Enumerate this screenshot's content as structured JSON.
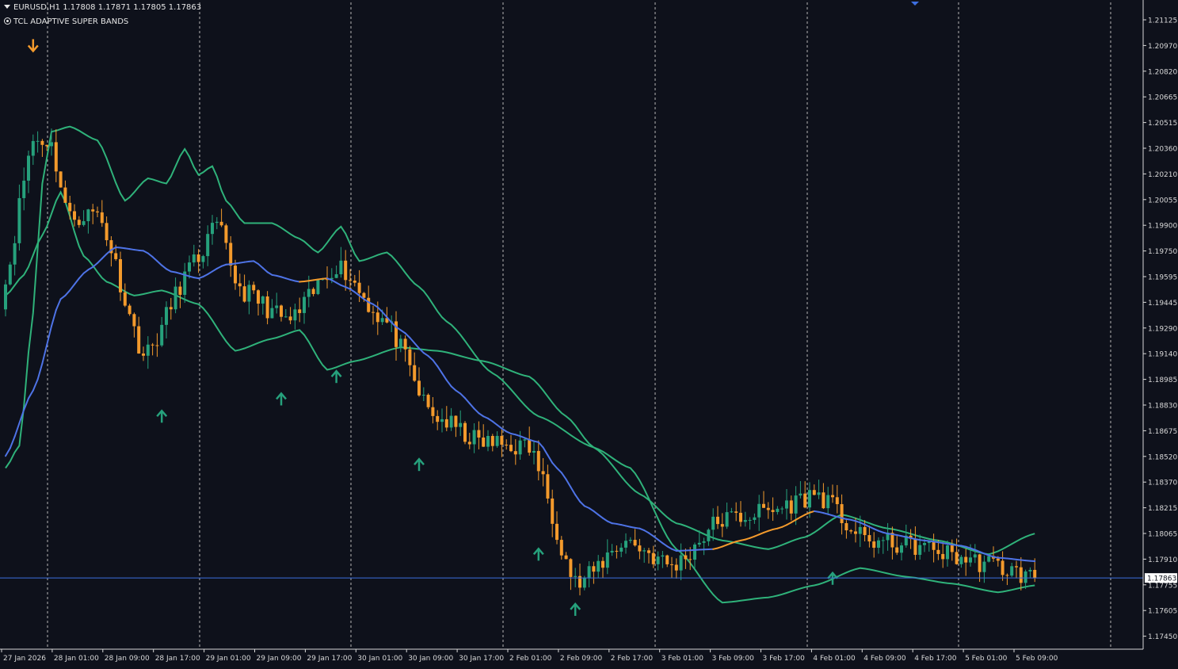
{
  "header": {
    "symbol_line": "EURUSD,H1  1.17808 1.17871 1.17805 1.17863",
    "indicator_name": "TCL ADAPTIVE SUPER BANDS",
    "menu_icon": "triangle-down-icon",
    "indicator_icon": "indicator-circle-icon"
  },
  "colors": {
    "background": "#0e111b",
    "bull": "#26a17c",
    "bear": "#f39a2c",
    "band": "#2fb27a",
    "ma_down": "#4e73e6",
    "ma_up": "#f39a2c",
    "price_line": "#3d6fe0",
    "grid": "#c8c8c8",
    "axis": "#d8d8d8",
    "axis_text": "#d8d8d8"
  },
  "chart_data": {
    "type": "candlestick",
    "symbol": "EURUSD",
    "timeframe": "H1",
    "title": "EURUSD,H1",
    "indicator": "TCL ADAPTIVE SUPER BANDS",
    "last_price": "1.17863",
    "ylim": [
      1.1745,
      1.212
    ],
    "y_ticks": [
      "1.21125",
      "1.20970",
      "1.20820",
      "1.20665",
      "1.20515",
      "1.20360",
      "1.20210",
      "1.20055",
      "1.19900",
      "1.19750",
      "1.19595",
      "1.19445",
      "1.19290",
      "1.19140",
      "1.18985",
      "1.18830",
      "1.18675",
      "1.18520",
      "1.18370",
      "1.18215",
      "1.18065",
      "1.17910",
      "1.17755",
      "1.17605",
      "1.17450"
    ],
    "x_ticks": [
      "27 Jan 2026",
      "28 Jan 01:00",
      "28 Jan 09:00",
      "28 Jan 17:00",
      "29 Jan 01:00",
      "29 Jan 09:00",
      "29 Jan 17:00",
      "30 Jan 01:00",
      "30 Jan 09:00",
      "30 Jan 17:00",
      "2 Feb 01:00",
      "2 Feb 09:00",
      "2 Feb 17:00",
      "3 Feb 01:00",
      "3 Feb 09:00",
      "3 Feb 17:00",
      "4 Feb 01:00",
      "4 Feb 09:00",
      "4 Feb 17:00",
      "5 Feb 01:00",
      "5 Feb 09:00"
    ],
    "day_separators": [
      "28 Jan",
      "29 Jan",
      "30 Jan",
      "31 Jan",
      "1 Feb",
      "2 Feb",
      "3 Feb",
      "4 Feb",
      "5 Feb",
      "6 Feb"
    ],
    "candle_anchors": [
      {
        "t": "27 Jan 2026",
        "close": 1.1948
      },
      {
        "t": "27 Jan 23:00",
        "close": 1.204
      },
      {
        "t": "28 Jan 01:00",
        "close": 1.204
      },
      {
        "t": "28 Jan 04:00",
        "close": 1.1995
      },
      {
        "t": "28 Jan 09:00",
        "close": 1.1998
      },
      {
        "t": "28 Jan 17:00",
        "close": 1.1915
      },
      {
        "t": "29 Jan 01:00",
        "close": 1.1968
      },
      {
        "t": "29 Jan 05:00",
        "close": 1.199
      },
      {
        "t": "29 Jan 09:00",
        "close": 1.1953
      },
      {
        "t": "29 Jan 17:00",
        "close": 1.1935
      },
      {
        "t": "30 Jan 01:00",
        "close": 1.1968
      },
      {
        "t": "30 Jan 09:00",
        "close": 1.1935
      },
      {
        "t": "30 Jan 17:00",
        "close": 1.188
      },
      {
        "t": "2 Feb 01:00",
        "close": 1.1865
      },
      {
        "t": "2 Feb 09:00",
        "close": 1.1862
      },
      {
        "t": "2 Feb 17:00",
        "close": 1.1782
      },
      {
        "t": "3 Feb 01:00",
        "close": 1.1808
      },
      {
        "t": "3 Feb 09:00",
        "close": 1.1793
      },
      {
        "t": "3 Feb 17:00",
        "close": 1.182
      },
      {
        "t": "4 Feb 01:00",
        "close": 1.1825
      },
      {
        "t": "4 Feb 09:00",
        "close": 1.1835
      },
      {
        "t": "4 Feb 17:00",
        "close": 1.1808
      },
      {
        "t": "5 Feb 01:00",
        "close": 1.1805
      },
      {
        "t": "5 Feb 06:00",
        "close": 1.1795
      },
      {
        "t": "5 Feb 10:00",
        "close": 1.17863
      }
    ],
    "series": [
      {
        "name": "",
        "role": "upper band",
        "points": [
          [
            0,
            1.185
          ],
          [
            3,
            1.1863
          ],
          [
            6,
            1.194
          ],
          [
            8,
            1.2015
          ],
          [
            10,
            1.2045
          ],
          [
            14,
            1.2048
          ],
          [
            20,
            1.204
          ],
          [
            26,
            1.2005
          ],
          [
            31,
            1.2018
          ],
          [
            35,
            1.2015
          ],
          [
            39,
            1.2035
          ],
          [
            42,
            1.202
          ],
          [
            45,
            1.2025
          ],
          [
            48,
            1.2005
          ],
          [
            52,
            1.1992
          ],
          [
            58,
            1.1992
          ],
          [
            64,
            1.1983
          ],
          [
            68,
            1.1975
          ],
          [
            73,
            1.199
          ],
          [
            77,
            1.197
          ],
          [
            83,
            1.1975
          ],
          [
            90,
            1.1955
          ],
          [
            96,
            1.1935
          ],
          [
            106,
            1.1905
          ],
          [
            116,
            1.188
          ],
          [
            128,
            1.1862
          ],
          [
            138,
            1.1835
          ],
          [
            146,
            1.1818
          ],
          [
            156,
            1.1808
          ],
          [
            166,
            1.1803
          ],
          [
            174,
            1.181
          ],
          [
            182,
            1.1823
          ],
          [
            192,
            1.1815
          ],
          [
            203,
            1.1808
          ],
          [
            214,
            1.18
          ],
          [
            224,
            1.1812
          ]
        ]
      },
      {
        "name": "",
        "role": "lower band",
        "points": [
          [
            0,
            1.195
          ],
          [
            4,
            1.1962
          ],
          [
            8,
            1.1985
          ],
          [
            12,
            1.201
          ],
          [
            17,
            1.1973
          ],
          [
            22,
            1.1958
          ],
          [
            28,
            1.195
          ],
          [
            34,
            1.1953
          ],
          [
            42,
            1.1945
          ],
          [
            50,
            1.1918
          ],
          [
            58,
            1.1925
          ],
          [
            64,
            1.193
          ],
          [
            70,
            1.1907
          ],
          [
            76,
            1.1912
          ],
          [
            86,
            1.192
          ],
          [
            94,
            1.1918
          ],
          [
            104,
            1.1912
          ],
          [
            114,
            1.1903
          ],
          [
            122,
            1.188
          ],
          [
            128,
            1.1862
          ],
          [
            136,
            1.185
          ],
          [
            146,
            1.1803
          ],
          [
            156,
            1.1772
          ],
          [
            166,
            1.1775
          ],
          [
            176,
            1.1782
          ],
          [
            186,
            1.1792
          ],
          [
            196,
            1.1787
          ],
          [
            206,
            1.1783
          ],
          [
            216,
            1.1778
          ],
          [
            224,
            1.1782
          ]
        ]
      },
      {
        "name": "",
        "role": "adaptive midline",
        "points": [
          [
            0,
            1.1857
          ],
          [
            6,
            1.1895
          ],
          [
            12,
            1.1948
          ],
          [
            18,
            1.1965
          ],
          [
            24,
            1.1978
          ],
          [
            30,
            1.1976
          ],
          [
            36,
            1.1964
          ],
          [
            42,
            1.196
          ],
          [
            48,
            1.1968
          ],
          [
            54,
            1.197
          ],
          [
            58,
            1.1962
          ],
          [
            64,
            1.1958
          ],
          [
            70,
            1.196
          ],
          [
            74,
            1.1955
          ],
          [
            80,
            1.1945
          ],
          [
            86,
            1.193
          ],
          [
            92,
            1.1915
          ],
          [
            98,
            1.1895
          ],
          [
            104,
            1.188
          ],
          [
            110,
            1.187
          ],
          [
            116,
            1.1865
          ],
          [
            120,
            1.185
          ],
          [
            126,
            1.1828
          ],
          [
            132,
            1.1818
          ],
          [
            138,
            1.1815
          ],
          [
            146,
            1.1802
          ],
          [
            154,
            1.1803
          ],
          [
            160,
            1.1808
          ],
          [
            168,
            1.1815
          ],
          [
            176,
            1.1825
          ],
          [
            184,
            1.182
          ],
          [
            192,
            1.1812
          ],
          [
            200,
            1.1808
          ],
          [
            208,
            1.1805
          ],
          [
            216,
            1.1798
          ],
          [
            224,
            1.1796
          ]
        ]
      }
    ],
    "signals": [
      {
        "type": "sell",
        "index": 6,
        "price": 1.2095
      },
      {
        "type": "buy",
        "index": 34,
        "price": 1.188
      },
      {
        "type": "buy",
        "index": 60,
        "price": 1.189
      },
      {
        "type": "buy",
        "index": 72,
        "price": 1.1903
      },
      {
        "type": "buy",
        "index": 90,
        "price": 1.1852
      },
      {
        "type": "buy",
        "index": 116,
        "price": 1.18
      },
      {
        "type": "buy",
        "index": 124,
        "price": 1.1768
      },
      {
        "type": "buy",
        "index": 180,
        "price": 1.1786
      }
    ],
    "grid": "vertical dashed day separators"
  }
}
